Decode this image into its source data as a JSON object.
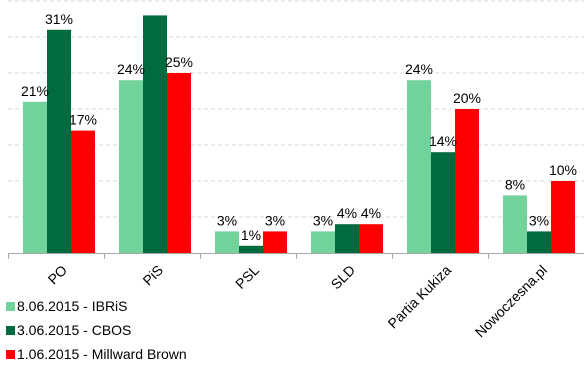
{
  "chart_data": {
    "type": "bar",
    "title": "",
    "categories": [
      "PO",
      "PiS",
      "PSL",
      "SLD",
      "Partia Kukiza",
      "Nowoczesna.pl"
    ],
    "series": [
      {
        "name": "8.06.2015 - IBRiS",
        "color": "#72d29c",
        "values": [
          21,
          24,
          3,
          3,
          24,
          8
        ],
        "labels": [
          "21%",
          "24%",
          "3%",
          "3%",
          "24%",
          "8%"
        ]
      },
      {
        "name": "3.06.2015 - CBOS",
        "color": "#006b3f",
        "values": [
          31,
          33,
          1,
          4,
          14,
          3
        ],
        "labels": [
          "31%",
          "",
          "1%",
          "4%",
          "14%",
          "3%"
        ]
      },
      {
        "name": "1.06.2015 - Millward Brown",
        "color": "#ff0000",
        "values": [
          17,
          25,
          3,
          4,
          20,
          10
        ],
        "labels": [
          "17%",
          "25%",
          "3%",
          "4%",
          "20%",
          "10%"
        ]
      }
    ],
    "ylim": [
      0,
      35
    ],
    "gridlines": [
      5,
      10,
      15,
      20,
      25,
      30,
      35
    ],
    "grid": "dashed horizontal",
    "legend_position": "bottom-left"
  }
}
